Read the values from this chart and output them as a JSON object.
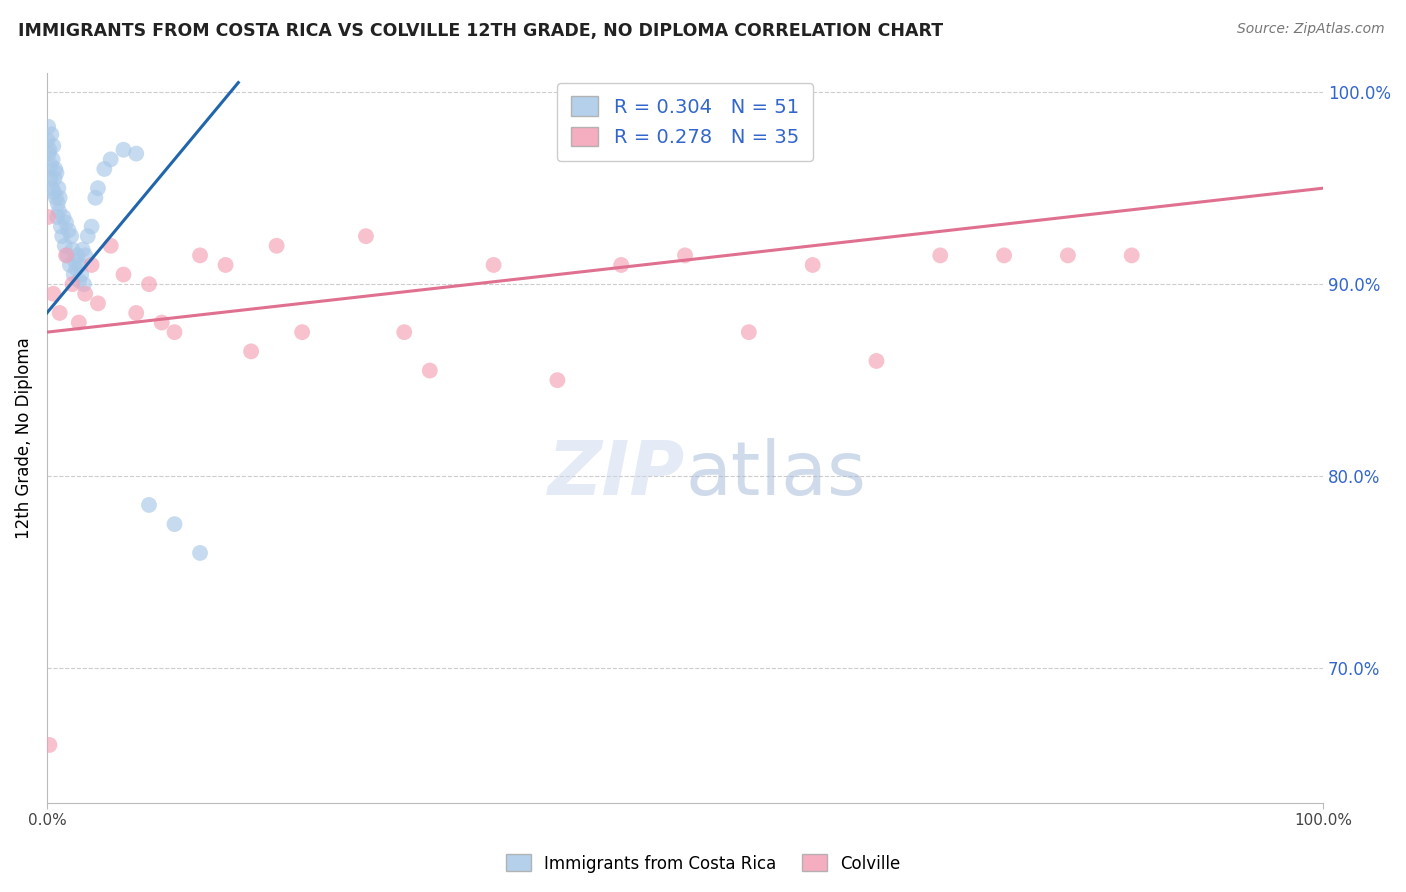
{
  "title": "IMMIGRANTS FROM COSTA RICA VS COLVILLE 12TH GRADE, NO DIPLOMA CORRELATION CHART",
  "source": "Source: ZipAtlas.com",
  "ylabel": "12th Grade, No Diploma",
  "legend_label1": "Immigrants from Costa Rica",
  "legend_label2": "Colville",
  "r1": 0.304,
  "n1": 51,
  "r2": 0.278,
  "n2": 35,
  "blue_color": "#a8c8e8",
  "pink_color": "#f4a0b5",
  "blue_line_color": "#2166ac",
  "pink_line_color": "#e07090",
  "legend_text_color": "#3366cc",
  "xlim": [
    0,
    100
  ],
  "ylim": [
    63,
    101
  ],
  "yticks": [
    70.0,
    80.0,
    90.0,
    100.0
  ],
  "blue_scatter_x": [
    0.05,
    0.1,
    0.15,
    0.2,
    0.25,
    0.3,
    0.35,
    0.4,
    0.45,
    0.5,
    0.55,
    0.6,
    0.65,
    0.7,
    0.75,
    0.8,
    0.85,
    0.9,
    0.95,
    1.0,
    1.1,
    1.2,
    1.3,
    1.4,
    1.5,
    1.6,
    1.7,
    1.8,
    1.9,
    2.0,
    2.1,
    2.2,
    2.3,
    2.4,
    2.5,
    2.6,
    2.7,
    2.8,
    2.9,
    3.0,
    3.2,
    3.5,
    3.8,
    4.0,
    4.5,
    5.0,
    6.0,
    7.0,
    8.0,
    10.0,
    12.0
  ],
  "blue_scatter_y": [
    97.5,
    98.2,
    96.8,
    97.0,
    95.5,
    96.2,
    97.8,
    95.0,
    96.5,
    97.2,
    94.8,
    95.5,
    96.0,
    94.5,
    95.8,
    93.5,
    94.2,
    95.0,
    93.8,
    94.5,
    93.0,
    92.5,
    93.5,
    92.0,
    93.2,
    91.5,
    92.8,
    91.0,
    92.5,
    91.8,
    90.5,
    91.2,
    90.8,
    91.5,
    90.2,
    91.0,
    90.5,
    91.8,
    90.0,
    91.5,
    92.5,
    93.0,
    94.5,
    95.0,
    96.0,
    96.5,
    97.0,
    96.8,
    78.5,
    77.5,
    76.0
  ],
  "pink_scatter_x": [
    0.2,
    0.5,
    1.0,
    1.5,
    2.0,
    2.5,
    3.0,
    3.5,
    4.0,
    5.0,
    6.0,
    7.0,
    8.0,
    9.0,
    10.0,
    12.0,
    14.0,
    16.0,
    18.0,
    20.0,
    25.0,
    28.0,
    30.0,
    35.0,
    40.0,
    45.0,
    50.0,
    55.0,
    60.0,
    65.0,
    70.0,
    75.0,
    80.0,
    85.0,
    0.1
  ],
  "pink_scatter_y": [
    66.0,
    89.5,
    88.5,
    91.5,
    90.0,
    88.0,
    89.5,
    91.0,
    89.0,
    92.0,
    90.5,
    88.5,
    90.0,
    88.0,
    87.5,
    91.5,
    91.0,
    86.5,
    92.0,
    87.5,
    92.5,
    87.5,
    85.5,
    91.0,
    85.0,
    91.0,
    91.5,
    87.5,
    91.0,
    86.0,
    91.5,
    91.5,
    91.5,
    91.5,
    93.5
  ],
  "blue_trendline_x": [
    0.0,
    15.0
  ],
  "pink_trendline_x": [
    0.0,
    100.0
  ],
  "blue_trendline_y_start": 88.5,
  "blue_trendline_y_end": 100.5,
  "pink_trendline_y_start": 87.5,
  "pink_trendline_y_end": 95.0
}
